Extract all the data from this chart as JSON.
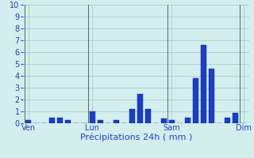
{
  "xlabel": "Précipitations 24h ( mm )",
  "ylim": [
    0,
    10
  ],
  "background_color": "#d4eeee",
  "grid_color": "#a8cccc",
  "bar_color": "#1a3fc4",
  "bar_edge_color": "#0a2090",
  "x_tick_labels": [
    "Ven",
    "Lun",
    "Sam",
    "Dim"
  ],
  "x_tick_positions": [
    1,
    9,
    19,
    28
  ],
  "values": [
    0.3,
    0.0,
    0.0,
    0.45,
    0.45,
    0.3,
    0.0,
    0.0,
    1.0,
    0.3,
    0.0,
    0.3,
    0.0,
    1.2,
    2.5,
    1.2,
    0.0,
    0.4,
    0.3,
    0.0,
    0.45,
    3.8,
    6.6,
    4.6,
    0.0,
    0.5,
    0.9,
    0.0
  ],
  "xlabel_fontsize": 8,
  "tick_fontsize": 7,
  "vline_positions": [
    1,
    9,
    19,
    28
  ],
  "vline_color": "#506868",
  "ytick_color": "#2040c0",
  "xtick_color": "#2040c0"
}
